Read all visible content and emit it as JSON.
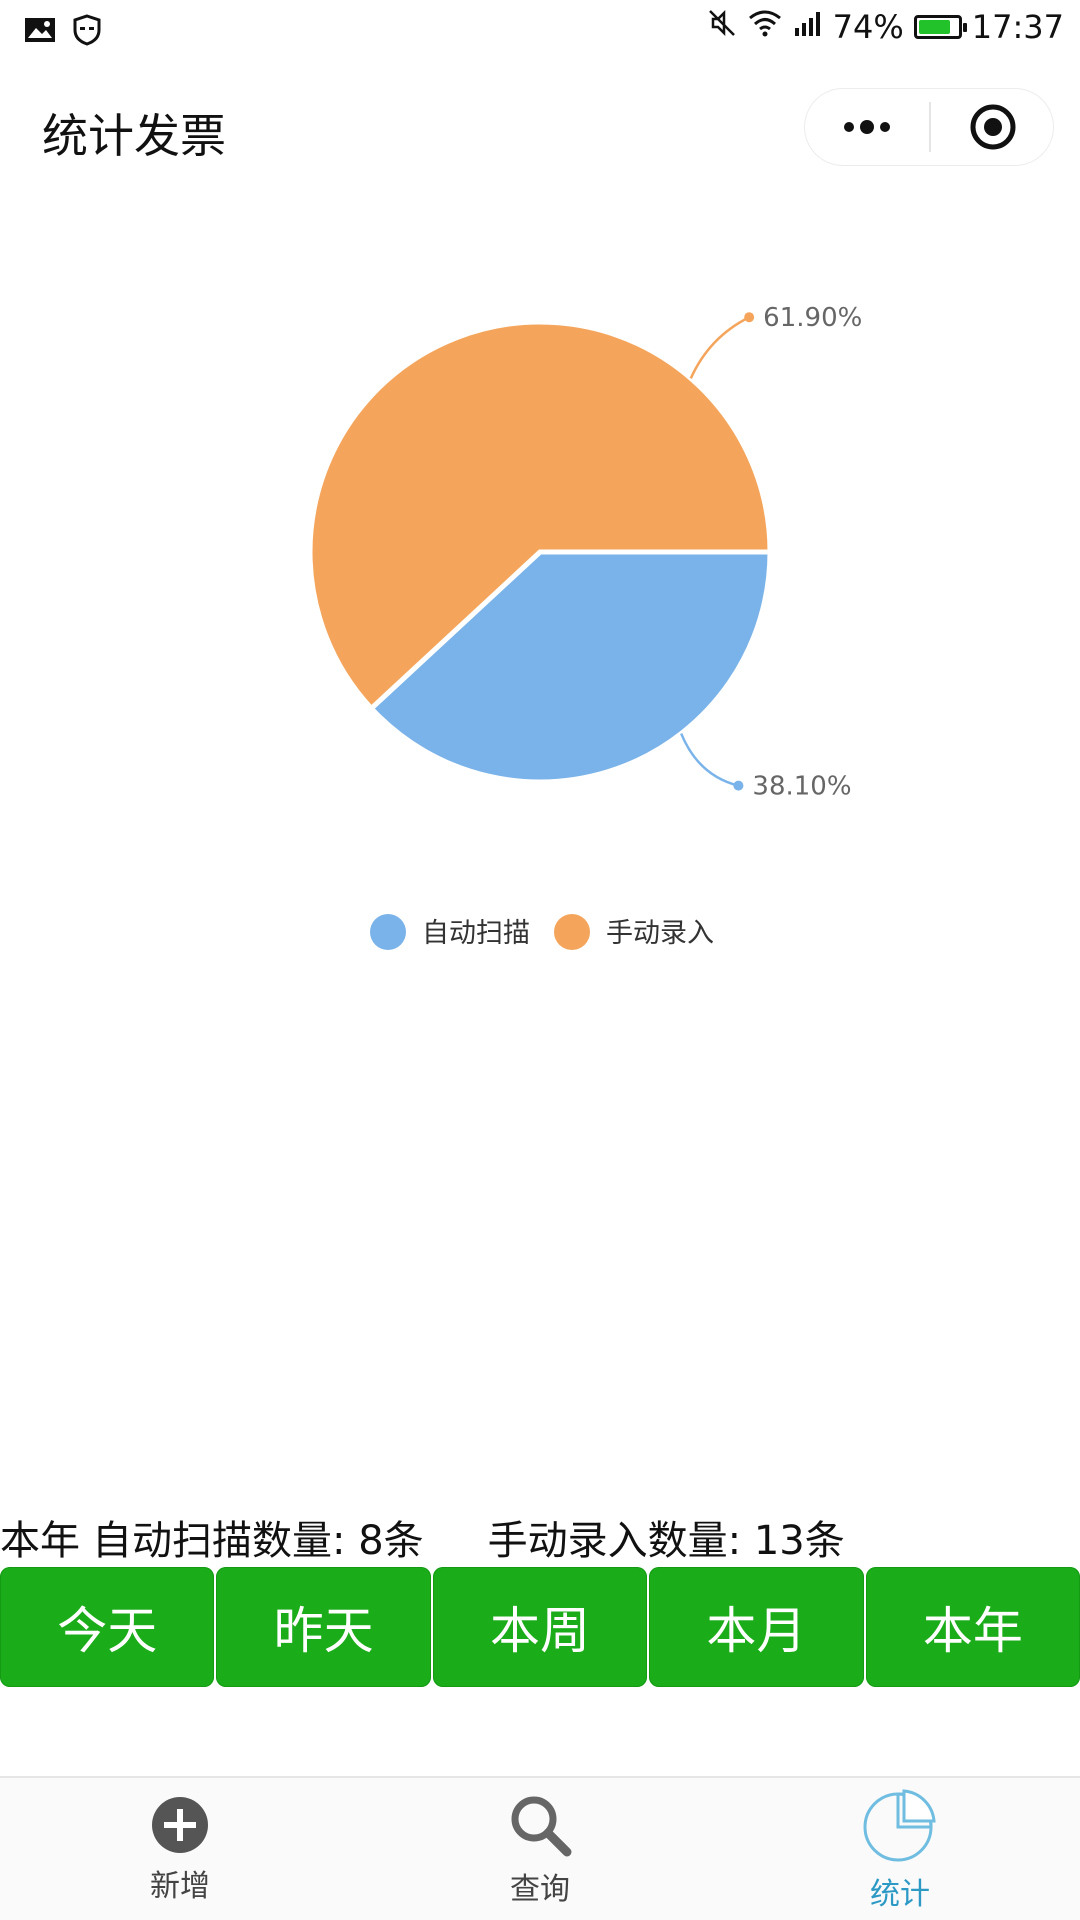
{
  "status_bar": {
    "battery": "74%",
    "time": "17:37"
  },
  "header": {
    "title": "统计发票"
  },
  "chart_data": {
    "type": "pie",
    "slices": [
      {
        "label": "自动扫描",
        "value": 38.1,
        "display": "38.10%",
        "color": "#7ab3ea"
      },
      {
        "label": "手动录入",
        "value": 61.9,
        "display": "61.90%",
        "color": "#f5a55b"
      }
    ],
    "legend": [
      "自动扫描",
      "手动录入"
    ],
    "legend_position": "bottom"
  },
  "summary": {
    "period_label": "本年",
    "auto_scan": "自动扫描数量: 8条",
    "manual_entry": "手动录入数量: 13条"
  },
  "period_buttons": [
    {
      "label": "今天"
    },
    {
      "label": "昨天"
    },
    {
      "label": "本周"
    },
    {
      "label": "本月"
    },
    {
      "label": "本年"
    }
  ],
  "tabbar": {
    "items": [
      {
        "label": "新增",
        "icon": "add-circle-icon"
      },
      {
        "label": "查询",
        "icon": "search-icon"
      },
      {
        "label": "统计",
        "icon": "pie-chart-icon",
        "active": true
      }
    ],
    "active_color": "#2d9ac6"
  }
}
